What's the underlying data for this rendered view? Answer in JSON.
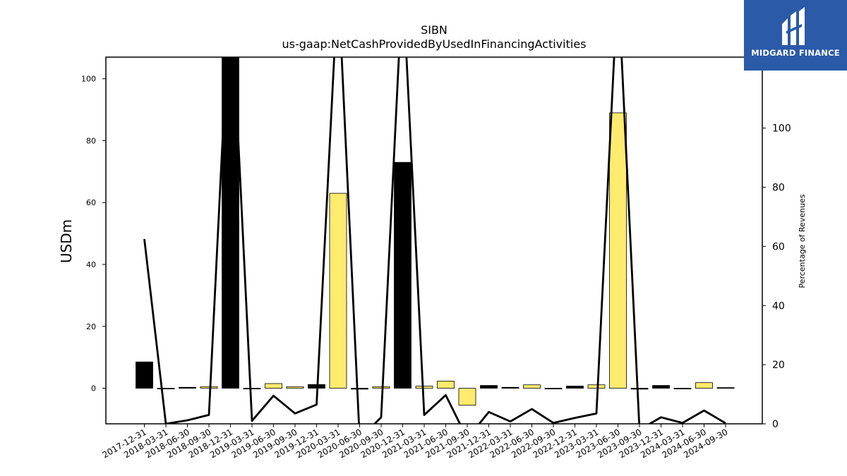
{
  "logo": {
    "text": "MIDGARD FINANCE"
  },
  "chart_data": {
    "type": "bar",
    "title": "SIBN",
    "subtitle": "us-gaap:NetCashProvidedByUsedInFinancingActivities",
    "ylabel": "USDm",
    "y2label": "Percentage of Revenues",
    "ylim": [
      -11.5,
      107
    ],
    "y2lim": [
      0,
      124
    ],
    "yticks": [
      0,
      20,
      40,
      60,
      80,
      100
    ],
    "y2ticks": [
      0,
      20,
      40,
      60,
      80,
      100
    ],
    "categories": [
      "2017-12-31",
      "2018-03-31",
      "2018-06-30",
      "2018-09-30",
      "2018-12-31",
      "2019-03-31",
      "2019-06-30",
      "2019-09-30",
      "2019-12-31",
      "2020-03-31",
      "2020-06-30",
      "2020-09-30",
      "2020-12-31",
      "2021-03-31",
      "2021-06-30",
      "2021-09-30",
      "2021-12-31",
      "2022-03-31",
      "2022-06-30",
      "2022-09-30",
      "2022-12-31",
      "2023-03-31",
      "2023-06-30",
      "2023-09-30",
      "2023-12-31",
      "2024-03-31",
      "2024-06-30",
      "2024-09-30"
    ],
    "series": [
      {
        "type": "bar",
        "values": [
          8.5,
          -0.2,
          0.3,
          0.5,
          110,
          -0.1,
          1.5,
          0.5,
          1.2,
          63,
          -0.3,
          0.5,
          73,
          0.7,
          2.3,
          -5.5,
          0.9,
          0.3,
          1.1,
          -0.1,
          0.7,
          1.1,
          89,
          -0.3,
          0.9,
          -0.1,
          1.8,
          0.2
        ],
        "colors": [
          "#000000",
          "#000000",
          "#000000",
          "#ffeb6e",
          "#000000",
          "#000000",
          "#ffeb6e",
          "#ffeb6e",
          "#000000",
          "#ffeb6e",
          "#000000",
          "#ffeb6e",
          "#000000",
          "#ffeb6e",
          "#ffeb6e",
          "#ffeb6e",
          "#000000",
          "#000000",
          "#ffeb6e",
          "#000000",
          "#000000",
          "#ffeb6e",
          "#ffeb6e",
          "#000000",
          "#000000",
          "#000000",
          "#ffeb6e",
          "#000000"
        ]
      },
      {
        "type": "line",
        "axis": "right",
        "color": "#000000",
        "values": [
          62.5,
          0,
          1.2,
          3,
          150,
          1,
          9.5,
          3.5,
          6.5,
          150,
          -5,
          2.2,
          150,
          3,
          9.7,
          -5,
          4,
          0.8,
          5,
          0.3,
          2,
          3.5,
          150,
          -2,
          2.2,
          0.3,
          4.5,
          0.2
        ]
      }
    ],
    "grid": false,
    "legend": "none",
    "colors": {
      "positive_bar": "#000000",
      "highlight_bar": "#ffeb6e",
      "line": "#000000",
      "logo_bg": "#2a5aa8"
    }
  }
}
